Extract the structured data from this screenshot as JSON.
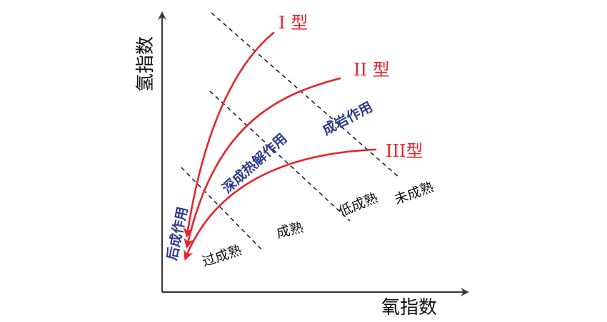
{
  "axes": {
    "y_label": "氢指数",
    "x_label": "氧指数"
  },
  "kerogen_types": [
    {
      "label": "I 型"
    },
    {
      "label": "II 型"
    },
    {
      "label": "III型"
    }
  ],
  "zones": {
    "diagenesis": "成岩作用",
    "catagenesis": "深成热解作用",
    "metagenesis": "后成作用"
  },
  "maturity": {
    "immature": "未成熟",
    "low_mature": "低成熟",
    "mature": "成熟",
    "over_mature": "过成熟"
  },
  "colors": {
    "axis": "#3a3a3a",
    "curve": "#e8242a",
    "type_label": "#e8242a",
    "zone_label": "#2b3a8c",
    "maturity_label": "#111111",
    "boundary": "#222222"
  }
}
